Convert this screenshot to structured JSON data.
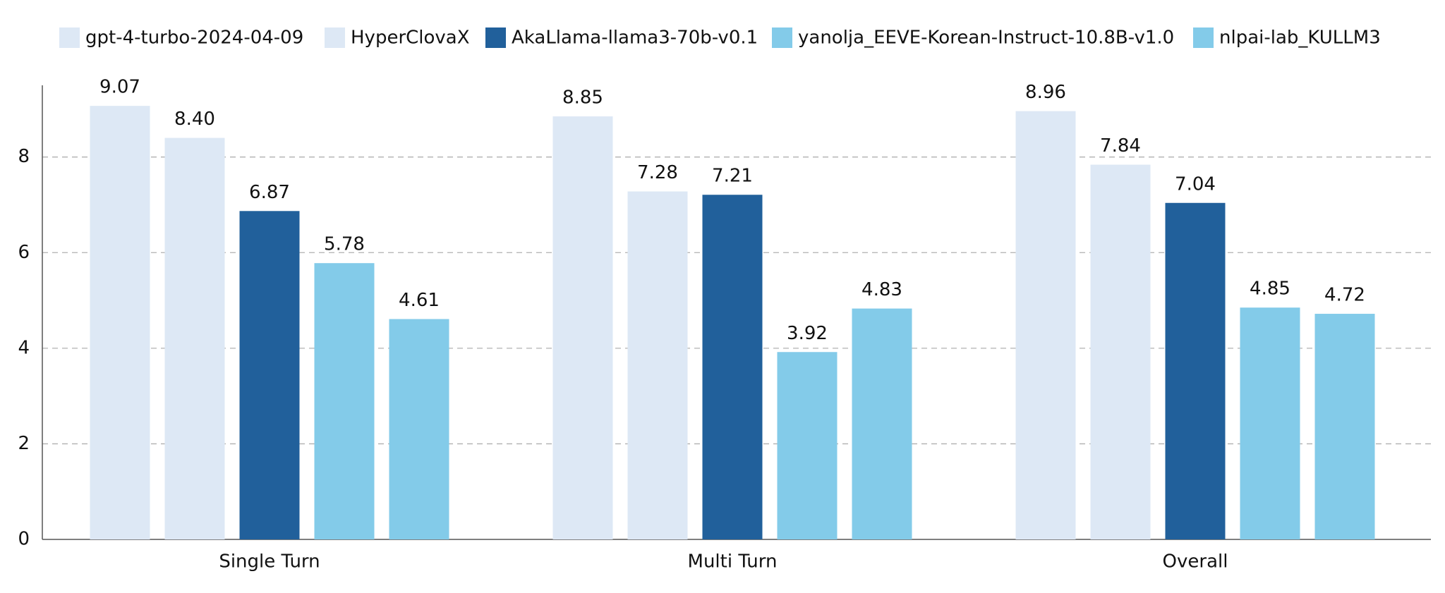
{
  "chart_data": {
    "type": "bar",
    "categories": [
      "Single Turn",
      "Multi Turn",
      "Overall"
    ],
    "series": [
      {
        "name": "gpt-4-turbo-2024-04-09",
        "color": "#dde8f5",
        "values": [
          9.07,
          8.85,
          8.96
        ],
        "value_labels": [
          "9.07",
          "8.85",
          "8.96"
        ]
      },
      {
        "name": "HyperClovaX",
        "color": "#dde8f5",
        "values": [
          8.4,
          7.28,
          7.84
        ],
        "value_labels": [
          "8.40",
          "7.28",
          "7.84"
        ]
      },
      {
        "name": "AkaLlama-llama3-70b-v0.1",
        "color": "#21609b",
        "values": [
          6.87,
          7.21,
          7.04
        ],
        "value_labels": [
          "6.87",
          "7.21",
          "7.04"
        ]
      },
      {
        "name": "yanolja_EEVE-Korean-Instruct-10.8B-v1.0",
        "color": "#83cbe9",
        "values": [
          5.78,
          3.92,
          4.85
        ],
        "value_labels": [
          "5.78",
          "3.92",
          "4.85"
        ]
      },
      {
        "name": "nlpai-lab_KULLM3",
        "color": "#83cbe9",
        "values": [
          4.61,
          4.83,
          4.72
        ],
        "value_labels": [
          "4.61",
          "4.83",
          "4.72"
        ]
      }
    ],
    "ylim": [
      0,
      9.5
    ],
    "yticks": [
      0,
      2,
      4,
      6,
      8
    ],
    "grid": true,
    "legend": "top"
  }
}
